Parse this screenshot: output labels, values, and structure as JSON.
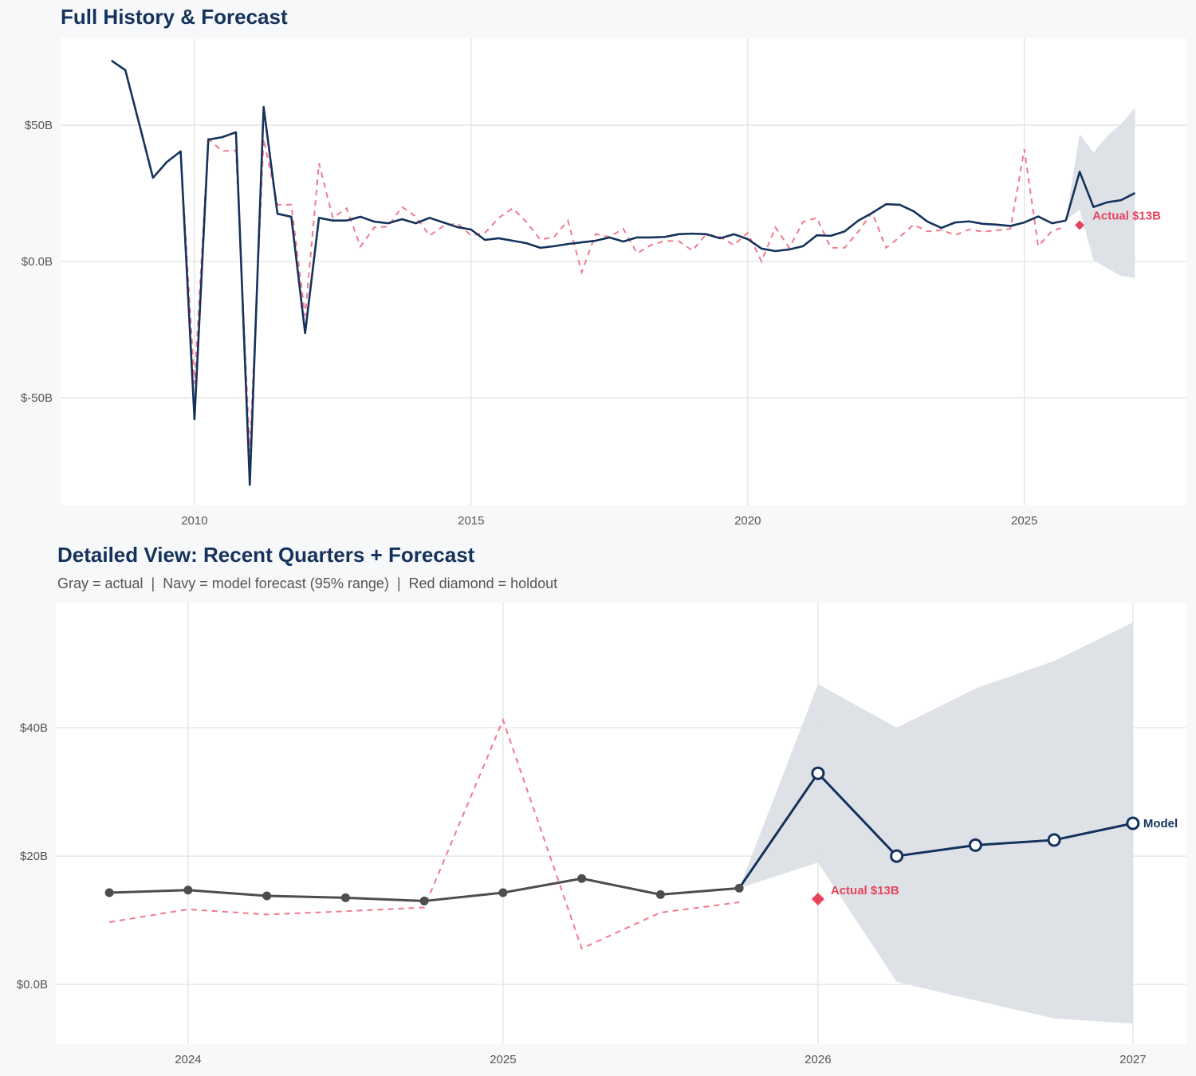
{
  "colors": {
    "navy": "#14325c",
    "red": "#e8435e",
    "red_dash": "#f07a8d",
    "gray_line": "#4d4d4d",
    "band": "#dce0e6",
    "grid": "#e3e3e3"
  },
  "chart_data": [
    {
      "type": "line",
      "title": "Full History & Forecast",
      "xlim": [
        2007.58,
        2027.93
      ],
      "ylim": [
        -89.5,
        81.9
      ],
      "x_ticks": [
        2010,
        2015,
        2020,
        2025
      ],
      "x_tick_labels": [
        "2010",
        "2015",
        "2020",
        "2025"
      ],
      "y_ticks": [
        50,
        0,
        -50
      ],
      "y_tick_labels": [
        "$50B",
        "$0.0B",
        "$-50B"
      ],
      "grid": true,
      "series": [
        {
          "name": "actual",
          "start": 2008.5,
          "step": 0.25,
          "values": [
            73.7,
            70.2,
            50.6,
            30.7,
            36.5,
            40.4,
            -57.9,
            44.7,
            45.6,
            47.4,
            -82,
            56.7,
            17.5,
            16.4,
            -26.3,
            16,
            15,
            15,
            16.4,
            14.6,
            14,
            15.5,
            14,
            16,
            14.3,
            12.6,
            11.7,
            7.9,
            8.5,
            7.6,
            6.7,
            5,
            5.6,
            6.4,
            7,
            7.6,
            8.8,
            7.3,
            8.8,
            8.8,
            9,
            10,
            10.2,
            10,
            8.5,
            10,
            8.2,
            4.7,
            3.8,
            4.4,
            5.6,
            9.6,
            9.4,
            11,
            15,
            17.8,
            21,
            20.8,
            18.4,
            14.6,
            12.3,
            14.3,
            14.7,
            13.8,
            13.5,
            13.0,
            14.3,
            16.5,
            14.0,
            15.0
          ]
        },
        {
          "name": "fitted",
          "start": 2009.75,
          "step": 0.25,
          "values": [
            40,
            -45,
            45,
            40.5,
            40.8,
            -70,
            45,
            20.8,
            20.8,
            -20,
            36,
            16,
            19.5,
            5.5,
            12.5,
            12.8,
            20,
            16.5,
            9.5,
            13,
            14,
            9.5,
            10.5,
            16,
            19.5,
            14.5,
            8,
            9,
            15,
            -4,
            10,
            9,
            12,
            3,
            6,
            7.5,
            7.5,
            4,
            10,
            9,
            6,
            10.5,
            0,
            12.5,
            5,
            14.5,
            16,
            5,
            5,
            11,
            18,
            5,
            9,
            13.5,
            11,
            11.5,
            9.7,
            11.7,
            10.9,
            11.4,
            12.0,
            41.2,
            5.6,
            11.2,
            12.8
          ]
        },
        {
          "name": "forecast",
          "x": [
            2025.75,
            2026,
            2026.25,
            2026.5,
            2026.75,
            2027
          ],
          "values": [
            15.0,
            32.9,
            20,
            21.7,
            22.5,
            25.1
          ],
          "upper": [
            15.0,
            46.8,
            40,
            46.1,
            50.4,
            56.4
          ],
          "lower": [
            15.0,
            19,
            0.4,
            -2.5,
            -5.3,
            -6.1
          ]
        }
      ],
      "holdout": {
        "x": 2026,
        "value": 13.3,
        "label": "Actual $13B"
      }
    },
    {
      "type": "line",
      "title": "Detailed View: Recent Quarters + Forecast",
      "subtitle": "Gray = actual  |  Navy = model forecast (95% range)  |  Red diamond = holdout",
      "xlim": [
        2023.58,
        2027.17
      ],
      "ylim": [
        -9.3,
        59.5
      ],
      "x_ticks": [
        2024,
        2025,
        2026,
        2027
      ],
      "x_tick_labels": [
        "2024",
        "2025",
        "2026",
        "2027"
      ],
      "y_ticks": [
        40,
        20,
        0
      ],
      "y_tick_labels": [
        "$40B",
        "$20B",
        "$0.0B"
      ],
      "grid": true,
      "series": [
        {
          "name": "actual",
          "start": 2023.75,
          "step": 0.25,
          "values": [
            14.3,
            14.7,
            13.8,
            13.5,
            13.0,
            14.3,
            16.5,
            14.0,
            15.0
          ]
        },
        {
          "name": "fitted",
          "start": 2023.75,
          "step": 0.25,
          "values": [
            9.7,
            11.7,
            10.9,
            11.4,
            12.0,
            41.2,
            5.6,
            11.2,
            12.8
          ]
        },
        {
          "name": "forecast",
          "x": [
            2025.75,
            2026,
            2026.25,
            2026.5,
            2026.75,
            2027
          ],
          "values": [
            15.0,
            32.9,
            20,
            21.7,
            22.5,
            25.1
          ],
          "upper": [
            15.0,
            46.8,
            40,
            46.1,
            50.4,
            56.4
          ],
          "lower": [
            15.0,
            19,
            0.4,
            -2.5,
            -5.3,
            -6.1
          ],
          "label": "Model"
        }
      ],
      "holdout": {
        "x": 2026,
        "value": 13.3,
        "label": "Actual $13B"
      }
    }
  ]
}
